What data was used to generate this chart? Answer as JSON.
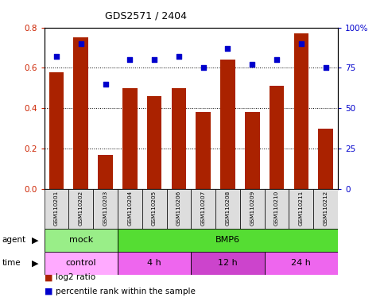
{
  "title": "GDS2571 / 2404",
  "samples": [
    "GSM110201",
    "GSM110202",
    "GSM110203",
    "GSM110204",
    "GSM110205",
    "GSM110206",
    "GSM110207",
    "GSM110208",
    "GSM110209",
    "GSM110210",
    "GSM110211",
    "GSM110212"
  ],
  "log2_ratio": [
    0.58,
    0.75,
    0.17,
    0.5,
    0.46,
    0.5,
    0.38,
    0.64,
    0.38,
    0.51,
    0.77,
    0.3
  ],
  "percentile": [
    82,
    90,
    65,
    80,
    80,
    82,
    75,
    87,
    77,
    80,
    90,
    75
  ],
  "bar_color": "#AA2200",
  "dot_color": "#0000CC",
  "ylim_left": [
    0,
    0.8
  ],
  "ylim_right": [
    0,
    100
  ],
  "yticks_left": [
    0,
    0.2,
    0.4,
    0.6,
    0.8
  ],
  "yticks_right": [
    0,
    25,
    50,
    75,
    100
  ],
  "agent_groups": [
    {
      "label": "mock",
      "start": 0,
      "end": 3,
      "color": "#99EE88"
    },
    {
      "label": "BMP6",
      "start": 3,
      "end": 12,
      "color": "#55DD33"
    }
  ],
  "time_groups": [
    {
      "label": "control",
      "start": 0,
      "end": 3,
      "color": "#FFAAFF"
    },
    {
      "label": "4 h",
      "start": 3,
      "end": 6,
      "color": "#EE66EE"
    },
    {
      "label": "12 h",
      "start": 6,
      "end": 9,
      "color": "#CC44CC"
    },
    {
      "label": "24 h",
      "start": 9,
      "end": 12,
      "color": "#EE66EE"
    }
  ],
  "legend_bar_label": "log2 ratio",
  "legend_dot_label": "percentile rank within the sample",
  "tick_label_color_left": "#CC2200",
  "tick_label_color_right": "#0000CC",
  "background_color": "#FFFFFF",
  "panel_bg": "#DDDDDD"
}
